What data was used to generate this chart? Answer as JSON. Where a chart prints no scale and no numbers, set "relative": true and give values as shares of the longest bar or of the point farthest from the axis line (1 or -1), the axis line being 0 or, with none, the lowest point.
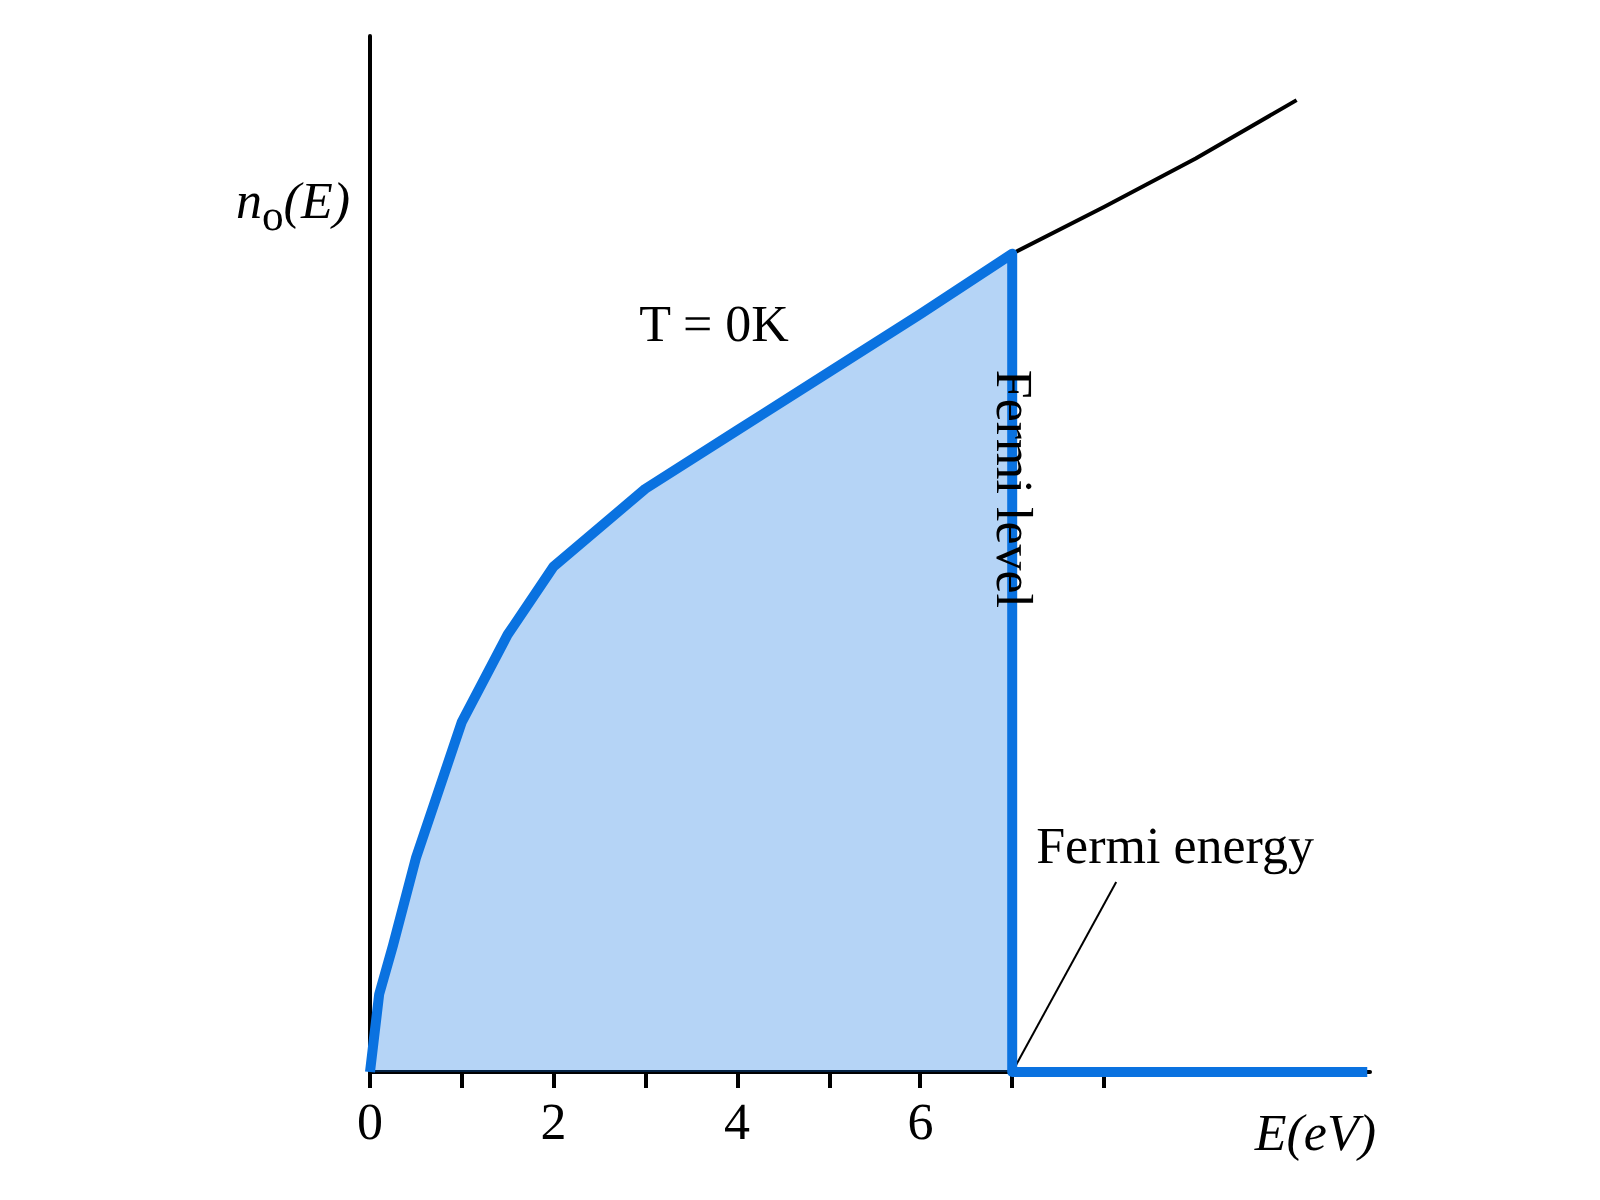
{
  "chart_data": {
    "type": "area",
    "relative": true,
    "xlabel": "E(eV)",
    "ylabel": "n$_{o}$(E)",
    "xlim": [
      0,
      10.9
    ],
    "xticks": [
      0,
      {
        "value": 1,
        "label": null
      },
      2,
      {
        "value": 3,
        "label": null
      },
      4,
      {
        "value": 5,
        "label": null
      },
      6,
      {
        "value": 7,
        "label": null
      },
      {
        "value": 8,
        "label": null
      }
    ],
    "grid": false,
    "marker": "none",
    "series": [
      {
        "type": "area",
        "color": "#0a72e0",
        "x": [
          0,
          0.1,
          0.25,
          0.5,
          1,
          1.5,
          2,
          3,
          4,
          5,
          6,
          7,
          7,
          10.87
        ],
        "values": [
          0,
          0.08,
          0.13,
          0.22,
          0.36,
          0.45,
          0.52,
          0.6,
          0.66,
          0.72,
          0.78,
          0.842,
          0,
          0
        ]
      },
      {
        "type": "line",
        "color": "#000000",
        "x": [
          7,
          8,
          9,
          10.1
        ],
        "values": [
          0.842,
          0.89,
          0.94,
          1
        ]
      }
    ],
    "annotations": [
      "T = 0K",
      {
        "text": "Fermi level",
        "x": 7,
        "y": 0.6
      },
      {
        "text": "Fermi energy",
        "x": 7,
        "y": 0
      }
    ]
  }
}
